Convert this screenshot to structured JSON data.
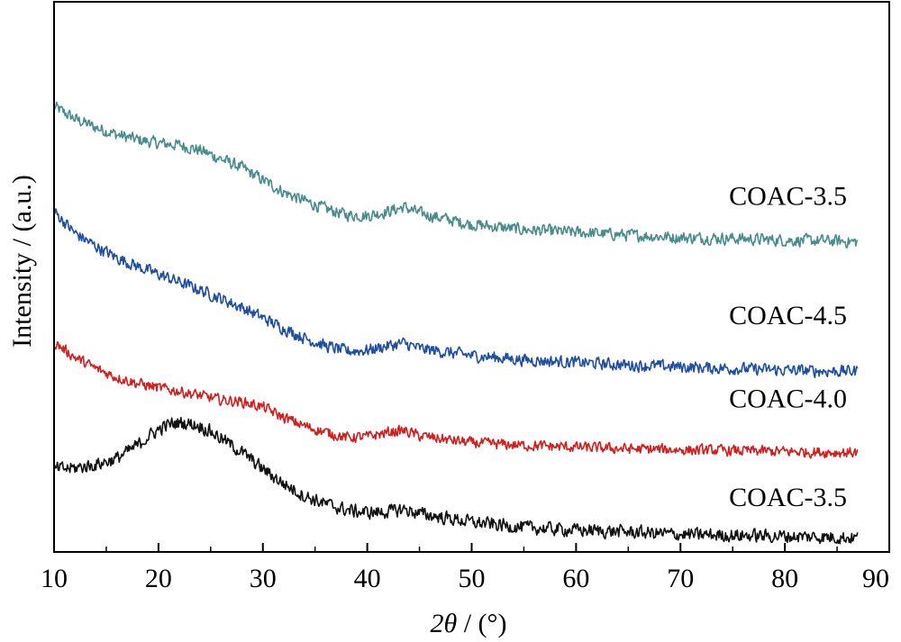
{
  "chart_data": {
    "type": "line",
    "title": "",
    "xlabel_prefix": "2",
    "xlabel_var": "θ",
    "xlabel_suffix": " / (°)",
    "ylabel": "Intensity / (a.u.)",
    "xlim": [
      10,
      90
    ],
    "ylim": [
      0,
      6.3
    ],
    "xticks": [
      10,
      20,
      30,
      40,
      50,
      60,
      70,
      80,
      90
    ],
    "xminor": [
      15,
      25,
      35,
      45,
      55,
      65,
      75,
      85
    ],
    "grid": false,
    "legend": "none",
    "series": [
      {
        "name": "COAC-3.5",
        "color": "#4a8c8c",
        "x": [
          10,
          12,
          14,
          16,
          18,
          20,
          22,
          24,
          26,
          28,
          30,
          32,
          34,
          36,
          38,
          40,
          42,
          43.5,
          45,
          48,
          50,
          55,
          60,
          65,
          70,
          75,
          80,
          85,
          87
        ],
        "y": [
          5.1,
          4.96,
          4.86,
          4.78,
          4.72,
          4.68,
          4.66,
          4.6,
          4.5,
          4.4,
          4.26,
          4.12,
          4.02,
          3.93,
          3.86,
          3.85,
          3.9,
          3.95,
          3.88,
          3.8,
          3.75,
          3.69,
          3.66,
          3.63,
          3.6,
          3.59,
          3.57,
          3.56,
          3.55
        ],
        "noise": 0.09,
        "label_y": 4.09
      },
      {
        "name": "COAC-4.5",
        "color": "#1f4fa0",
        "x": [
          10,
          12,
          14,
          16,
          18,
          20,
          22,
          24,
          26,
          28,
          30,
          32,
          34,
          36,
          38,
          40,
          42,
          43.5,
          45,
          48,
          50,
          55,
          60,
          65,
          70,
          75,
          80,
          85,
          87
        ],
        "y": [
          3.9,
          3.65,
          3.5,
          3.37,
          3.27,
          3.18,
          3.09,
          3.0,
          2.9,
          2.8,
          2.68,
          2.56,
          2.45,
          2.36,
          2.3,
          2.31,
          2.36,
          2.39,
          2.33,
          2.28,
          2.25,
          2.2,
          2.17,
          2.14,
          2.12,
          2.1,
          2.08,
          2.07,
          2.07
        ],
        "noise": 0.09,
        "label_y": 2.72
      },
      {
        "name": "COAC-4.0",
        "color": "#d21f1f",
        "x": [
          10,
          12,
          14,
          16,
          18,
          20,
          22,
          24,
          26,
          28,
          30,
          32,
          34,
          36,
          38,
          40,
          42,
          43.5,
          45,
          48,
          50,
          55,
          60,
          65,
          70,
          75,
          80,
          85,
          87
        ],
        "y": [
          2.4,
          2.23,
          2.1,
          2.0,
          1.93,
          1.88,
          1.84,
          1.79,
          1.74,
          1.72,
          1.66,
          1.54,
          1.44,
          1.37,
          1.31,
          1.32,
          1.37,
          1.39,
          1.33,
          1.28,
          1.25,
          1.22,
          1.2,
          1.18,
          1.17,
          1.16,
          1.15,
          1.14,
          1.14
        ],
        "noise": 0.08,
        "label_y": 1.77
      },
      {
        "name": "COAC-3.5",
        "color": "#111111",
        "x": [
          10,
          12,
          14,
          16,
          18,
          19,
          20,
          21,
          22,
          23,
          24,
          25,
          26,
          28,
          30,
          32,
          34,
          36,
          38,
          40,
          42,
          43.5,
          45,
          48,
          50,
          55,
          60,
          65,
          70,
          75,
          80,
          85,
          87
        ],
        "y": [
          0.95,
          0.96,
          1.0,
          1.07,
          1.22,
          1.32,
          1.4,
          1.46,
          1.48,
          1.47,
          1.44,
          1.38,
          1.3,
          1.14,
          0.95,
          0.78,
          0.64,
          0.55,
          0.48,
          0.45,
          0.46,
          0.49,
          0.44,
          0.38,
          0.34,
          0.28,
          0.25,
          0.23,
          0.2,
          0.19,
          0.18,
          0.17,
          0.16
        ],
        "noise": 0.1,
        "label_y": 0.64
      }
    ]
  }
}
